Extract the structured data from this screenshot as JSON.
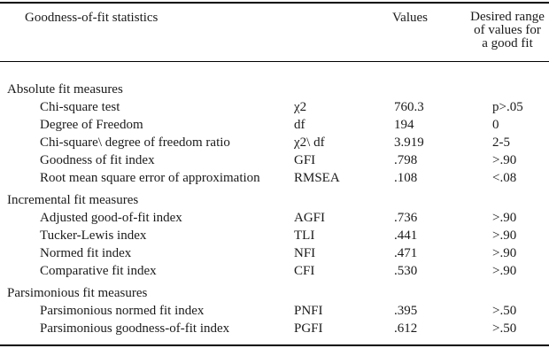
{
  "table": {
    "header": {
      "statistics": "Goodness-of-fit statistics",
      "values": "Values",
      "desired_range": [
        "Desired range",
        "of values for",
        "a good fit"
      ]
    },
    "sections": [
      {
        "title": "Absolute fit measures",
        "rows": [
          {
            "label": "Chi-square test",
            "symbol": "χ2",
            "value": "760.3",
            "range": "p>.05"
          },
          {
            "label": "Degree of Freedom",
            "symbol": "df",
            "value": "194",
            "range": "0"
          },
          {
            "label": "Chi-square\\ degree of freedom ratio",
            "symbol": "χ2\\ df",
            "value": "3.919",
            "range": "2-5"
          },
          {
            "label": "Goodness of fit index",
            "symbol": "GFI",
            "value": ".798",
            "range": ">.90"
          },
          {
            "label": "Root mean square error of approximation",
            "symbol": "RMSEA",
            "value": ".108",
            "range": "<.08"
          }
        ]
      },
      {
        "title": "Incremental fit measures",
        "rows": [
          {
            "label": "Adjusted good-of-fit index",
            "symbol": "AGFI",
            "value": ".736",
            "range": ">.90"
          },
          {
            "label": "Tucker-Lewis index",
            "symbol": "TLI",
            "value": ".441",
            "range": ">.90"
          },
          {
            "label": "Normed fit index",
            "symbol": "NFI",
            "value": ".471",
            "range": ">.90"
          },
          {
            "label": "Comparative fit index",
            "symbol": "CFI",
            "value": ".530",
            "range": ">.90"
          }
        ]
      },
      {
        "title": "Parsimonious fit measures",
        "rows": [
          {
            "label": "Parsimonious normed fit index",
            "symbol": "PNFI",
            "value": ".395",
            "range": ">.50"
          },
          {
            "label": "Parsimonious goodness-of-fit index",
            "symbol": "PGFI",
            "value": ".612",
            "range": ">.50"
          }
        ]
      }
    ]
  },
  "colors": {
    "background": "#ffffff",
    "text": "#1a1a1a",
    "border": "#000000"
  }
}
